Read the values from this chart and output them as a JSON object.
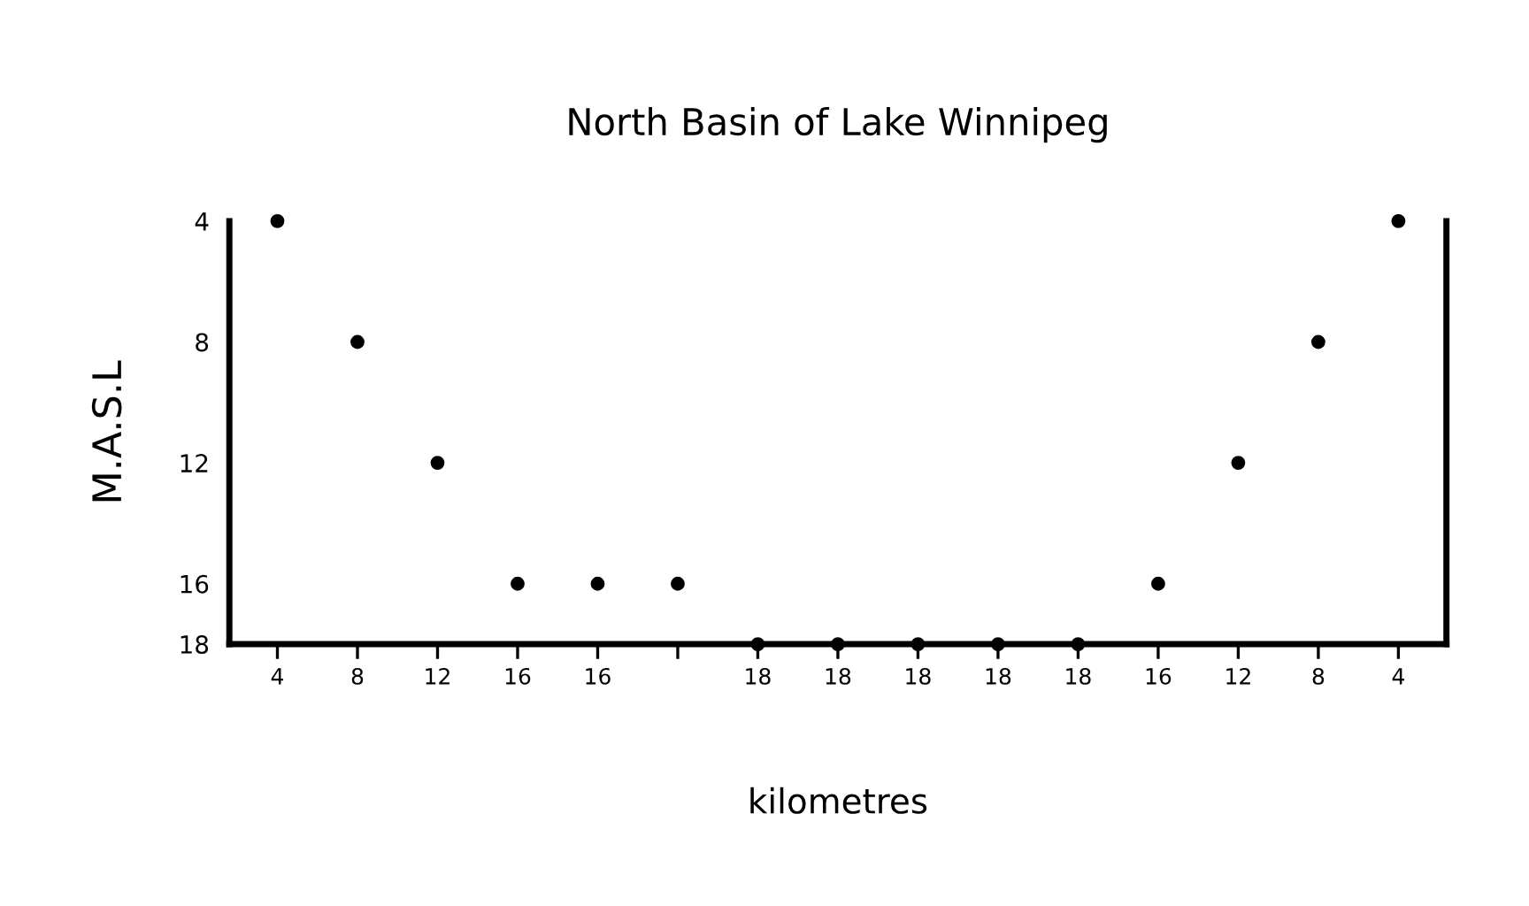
{
  "chart_data": {
    "type": "scatter",
    "title": "North Basin of Lake Winnipeg",
    "xlabel": "kilometres",
    "ylabel": "M.A.S.L",
    "categories": [
      "4",
      "8",
      "12",
      "16",
      "16",
      null,
      "18",
      "18",
      "18",
      "18",
      "18",
      "16",
      "12",
      "8",
      "4"
    ],
    "values": [
      4,
      8,
      12,
      16,
      16,
      16,
      18,
      18,
      18,
      18,
      18,
      16,
      12,
      8,
      4
    ],
    "color": "#000000",
    "marker": "circle",
    "ylim": [
      18,
      4
    ],
    "yticks": [
      4,
      8,
      12,
      16,
      18
    ],
    "grid": false
  }
}
